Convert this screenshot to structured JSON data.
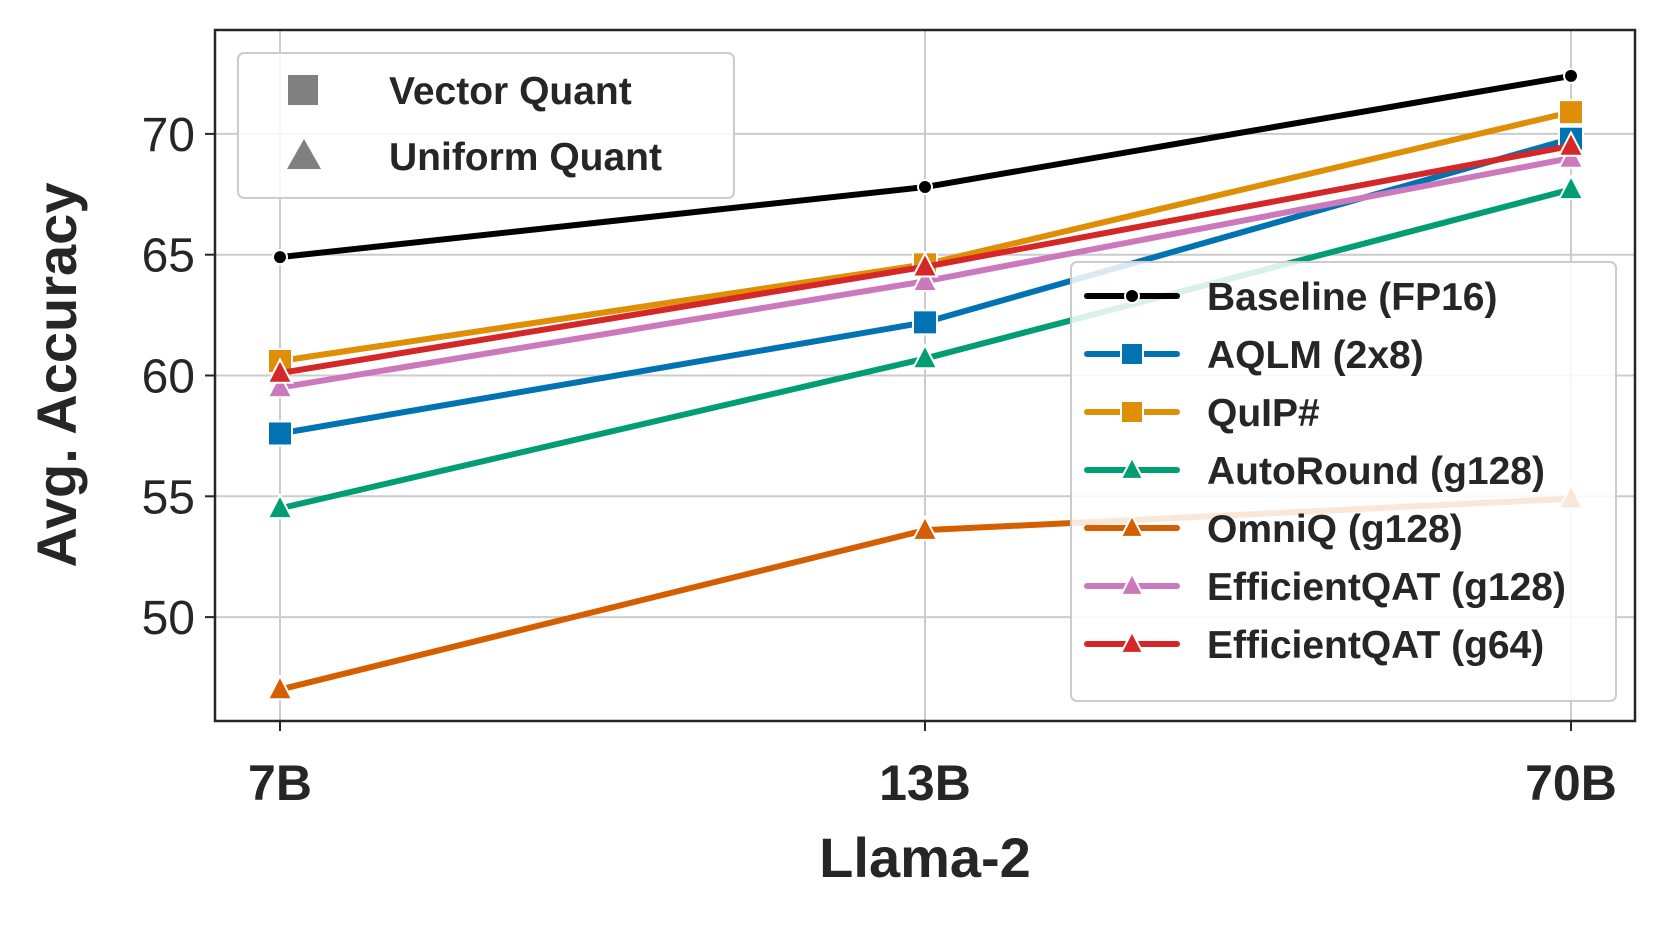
{
  "chart_data": {
    "type": "line",
    "xlabel": "Llama-2",
    "ylabel": "Avg. Accuracy",
    "categories": [
      "7B",
      "13B",
      "70B"
    ],
    "ylim": [
      45.7,
      74.3
    ],
    "yticks": [
      50,
      55,
      60,
      65,
      70
    ],
    "grid": true,
    "legend_marker_type": {
      "placement": "top-left",
      "entries": [
        {
          "label": "Vector Quant",
          "marker": "square"
        },
        {
          "label": "Uniform Quant",
          "marker": "triangle"
        }
      ]
    },
    "legend_series": {
      "placement": "center-right"
    },
    "series": [
      {
        "name": "Baseline (FP16)",
        "values": [
          64.9,
          67.8,
          72.4
        ],
        "color": "#000000",
        "marker": "dot"
      },
      {
        "name": "AQLM (2x8)",
        "values": [
          57.6,
          62.2,
          69.8
        ],
        "color": "#0173b2",
        "marker": "square"
      },
      {
        "name": "QuIP#",
        "values": [
          60.6,
          64.6,
          70.9
        ],
        "color": "#de8f05",
        "marker": "square"
      },
      {
        "name": "AutoRound (g128)",
        "values": [
          54.5,
          60.7,
          67.7
        ],
        "color": "#029e73",
        "marker": "triangle"
      },
      {
        "name": "OmniQ (g128)",
        "values": [
          47.0,
          53.6,
          54.9
        ],
        "color": "#d55e00",
        "marker": "triangle"
      },
      {
        "name": "EfficientQAT (g128)",
        "values": [
          59.5,
          63.9,
          69.0
        ],
        "color": "#cc78bc",
        "marker": "triangle"
      },
      {
        "name": "EfficientQAT (g64)",
        "values": [
          60.1,
          64.5,
          69.5
        ],
        "color": "#d62728",
        "marker": "triangle"
      }
    ]
  }
}
